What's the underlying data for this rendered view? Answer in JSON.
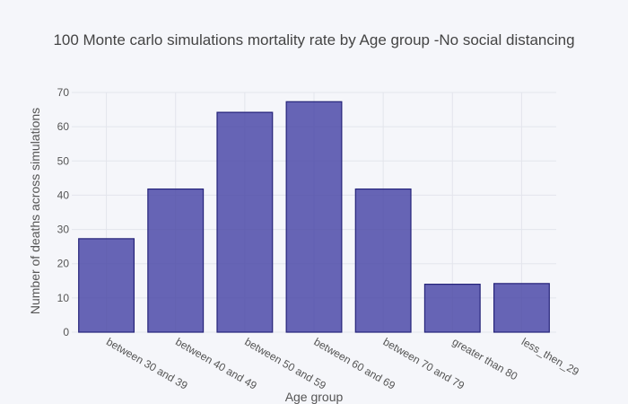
{
  "chart_data": {
    "type": "bar",
    "title": "100 Monte carlo simulations mortality rate by Age group -No social distancing",
    "xlabel": "Age group",
    "ylabel": "Number of deaths across simulations",
    "categories": [
      "between 30 and 39",
      "between 40 and 49",
      "between 50 and 59",
      "between 60 and 69",
      "between 70 and 79",
      "greater than 80",
      "less_then_29"
    ],
    "values": [
      27.3,
      41.8,
      64.2,
      67.3,
      41.8,
      14.0,
      14.2
    ],
    "ylim": [
      0,
      70
    ],
    "yticks": [
      0,
      10,
      20,
      30,
      40,
      50,
      60,
      70
    ],
    "grid": true,
    "legend": "none",
    "colors": {
      "bar_fill": "#4c4aa8",
      "bar_stroke": "#25237a",
      "plot_bg": "#f5f6fa",
      "grid": "#e3e5ec",
      "text": "#555555"
    }
  }
}
